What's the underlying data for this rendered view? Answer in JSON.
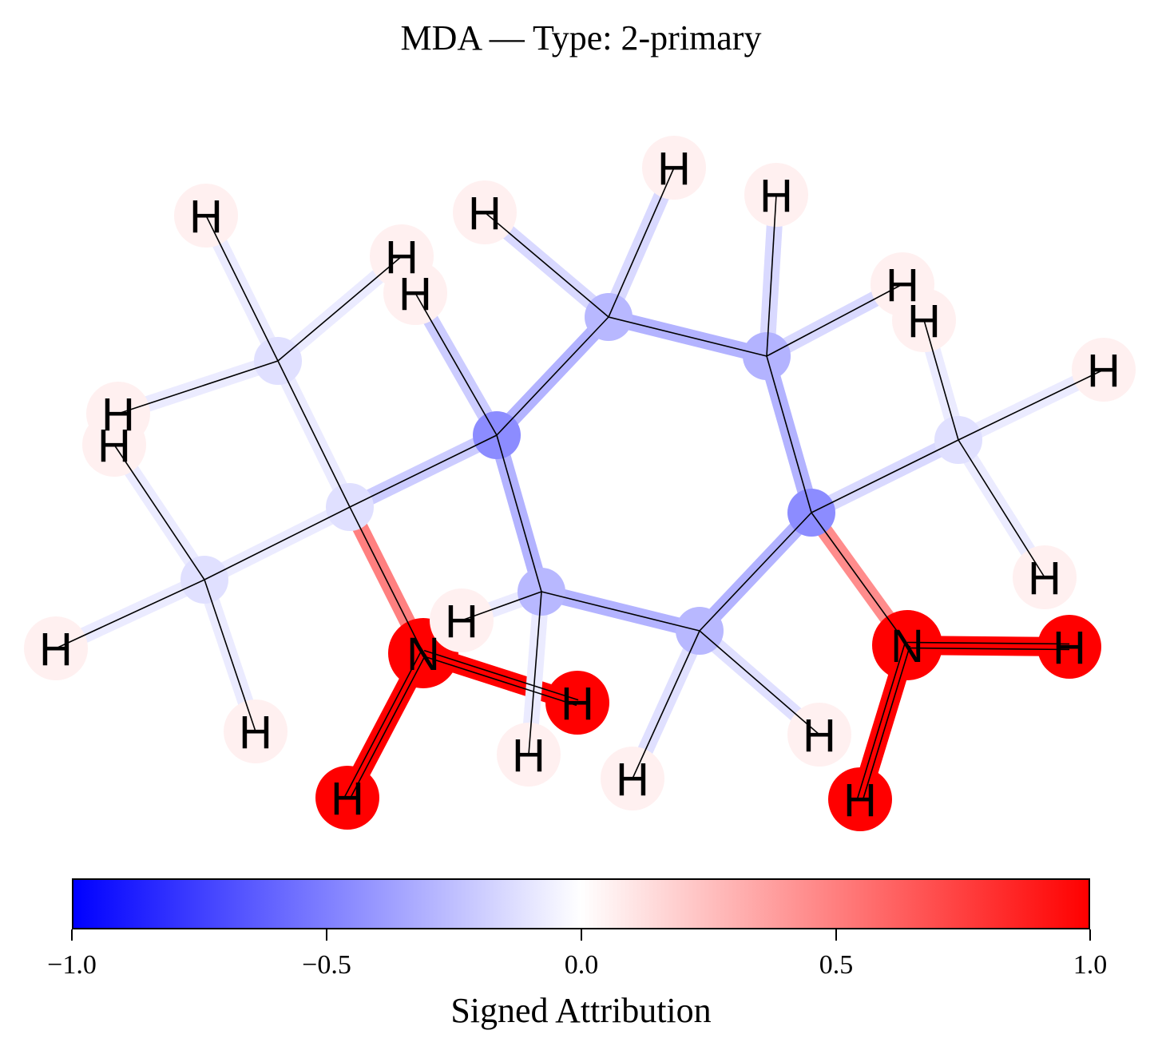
{
  "title": "MDA — Type: 2-primary",
  "colorbar": {
    "label": "Signed Attribution",
    "ticks": [
      "−1.0",
      "−0.5",
      "0.0",
      "0.5",
      "1.0"
    ],
    "range": [
      -1.0,
      1.0
    ],
    "colors": {
      "negative": "#0000ff",
      "zero": "#ffffff",
      "positive": "#ff0000"
    }
  },
  "molecule": {
    "atoms": [
      {
        "id": "C1",
        "label": "",
        "attr": -0.12
      },
      {
        "id": "C2",
        "label": "",
        "attr": -0.12
      },
      {
        "id": "C3",
        "label": "",
        "attr": -0.12
      },
      {
        "id": "C4",
        "label": "",
        "attr": -0.45
      },
      {
        "id": "C5",
        "label": "",
        "attr": -0.28
      },
      {
        "id": "C6",
        "label": "",
        "attr": -0.3
      },
      {
        "id": "C7",
        "label": "",
        "attr": -0.28
      },
      {
        "id": "C8",
        "label": "",
        "attr": -0.28
      },
      {
        "id": "C9",
        "label": "",
        "attr": -0.45
      },
      {
        "id": "C10",
        "label": "",
        "attr": -0.12
      },
      {
        "id": "N1",
        "label": "N",
        "attr": 1.0
      },
      {
        "id": "N2",
        "label": "N",
        "attr": 1.0
      },
      {
        "id": "H1",
        "label": "H",
        "attr": 0.06
      },
      {
        "id": "H2",
        "label": "H",
        "attr": 0.06
      },
      {
        "id": "H3",
        "label": "H",
        "attr": 0.06
      },
      {
        "id": "H4",
        "label": "H",
        "attr": 0.06
      },
      {
        "id": "H5",
        "label": "H",
        "attr": 0.06
      },
      {
        "id": "H6",
        "label": "H",
        "attr": 0.06
      },
      {
        "id": "H7",
        "label": "H",
        "attr": 0.06
      },
      {
        "id": "H8",
        "label": "H",
        "attr": 0.06
      },
      {
        "id": "H9",
        "label": "H",
        "attr": 0.06
      },
      {
        "id": "H10",
        "label": "H",
        "attr": 0.06
      },
      {
        "id": "H11",
        "label": "H",
        "attr": 0.06
      },
      {
        "id": "H12",
        "label": "H",
        "attr": 0.06
      },
      {
        "id": "H13",
        "label": "H",
        "attr": 0.06
      },
      {
        "id": "H14",
        "label": "H",
        "attr": 0.06
      },
      {
        "id": "H15",
        "label": "H",
        "attr": 0.06
      },
      {
        "id": "H16",
        "label": "H",
        "attr": 0.06
      },
      {
        "id": "H17",
        "label": "H",
        "attr": 0.06
      },
      {
        "id": "H18",
        "label": "H",
        "attr": 0.06
      },
      {
        "id": "H19",
        "label": "H",
        "attr": 1.0
      },
      {
        "id": "H20",
        "label": "H",
        "attr": 1.0
      },
      {
        "id": "H21",
        "label": "H",
        "attr": 1.0
      },
      {
        "id": "H22",
        "label": "H",
        "attr": 1.0
      }
    ],
    "bonds": [
      {
        "a": "C1",
        "b": "C2",
        "attr": -0.08,
        "double": false
      },
      {
        "a": "C2",
        "b": "C3",
        "attr": -0.08,
        "double": false
      },
      {
        "a": "C2",
        "b": "C4",
        "attr": -0.2,
        "double": false
      },
      {
        "a": "C2",
        "b": "N1",
        "attr": 0.5,
        "double": false
      },
      {
        "a": "C4",
        "b": "C5",
        "attr": -0.3,
        "double": false
      },
      {
        "a": "C5",
        "b": "C6",
        "attr": -0.3,
        "double": false
      },
      {
        "a": "C6",
        "b": "C9",
        "attr": -0.3,
        "double": false
      },
      {
        "a": "C9",
        "b": "C8",
        "attr": -0.3,
        "double": false
      },
      {
        "a": "C8",
        "b": "C7",
        "attr": -0.3,
        "double": false
      },
      {
        "a": "C7",
        "b": "C4",
        "attr": -0.3,
        "double": false
      },
      {
        "a": "C9",
        "b": "C10",
        "attr": -0.15,
        "double": false
      },
      {
        "a": "C9",
        "b": "N2",
        "attr": 0.45,
        "double": false
      },
      {
        "a": "N1",
        "b": "H21",
        "attr": 1.0,
        "double": true
      },
      {
        "a": "N1",
        "b": "H22",
        "attr": 1.0,
        "double": true
      },
      {
        "a": "N2",
        "b": "H19",
        "attr": 1.0,
        "double": true
      },
      {
        "a": "N2",
        "b": "H20",
        "attr": 1.0,
        "double": true
      },
      {
        "a": "C1",
        "b": "H1",
        "attr": -0.08,
        "double": false
      },
      {
        "a": "C1",
        "b": "H2",
        "attr": -0.08,
        "double": false
      },
      {
        "a": "C1",
        "b": "H3",
        "attr": -0.08,
        "double": false
      },
      {
        "a": "C3",
        "b": "H4",
        "attr": -0.08,
        "double": false
      },
      {
        "a": "C3",
        "b": "H5",
        "attr": -0.08,
        "double": false
      },
      {
        "a": "C3",
        "b": "H6",
        "attr": -0.08,
        "double": false
      },
      {
        "a": "C4",
        "b": "H7",
        "attr": -0.2,
        "double": false
      },
      {
        "a": "C5",
        "b": "H8",
        "attr": -0.15,
        "double": false
      },
      {
        "a": "C5",
        "b": "H9",
        "attr": -0.15,
        "double": false
      },
      {
        "a": "C6",
        "b": "H10",
        "attr": -0.15,
        "double": false
      },
      {
        "a": "C6",
        "b": "H11",
        "attr": -0.15,
        "double": false
      },
      {
        "a": "C7",
        "b": "H12",
        "attr": -0.08,
        "double": false
      },
      {
        "a": "C7",
        "b": "H13",
        "attr": -0.08,
        "double": false
      },
      {
        "a": "C8",
        "b": "H14",
        "attr": -0.12,
        "double": false
      },
      {
        "a": "C8",
        "b": "H15",
        "attr": -0.12,
        "double": false
      },
      {
        "a": "C10",
        "b": "H16",
        "attr": -0.08,
        "double": false
      },
      {
        "a": "C10",
        "b": "H17",
        "attr": -0.08,
        "double": false
      },
      {
        "a": "C10",
        "b": "H18",
        "attr": -0.08,
        "double": false
      }
    ]
  }
}
